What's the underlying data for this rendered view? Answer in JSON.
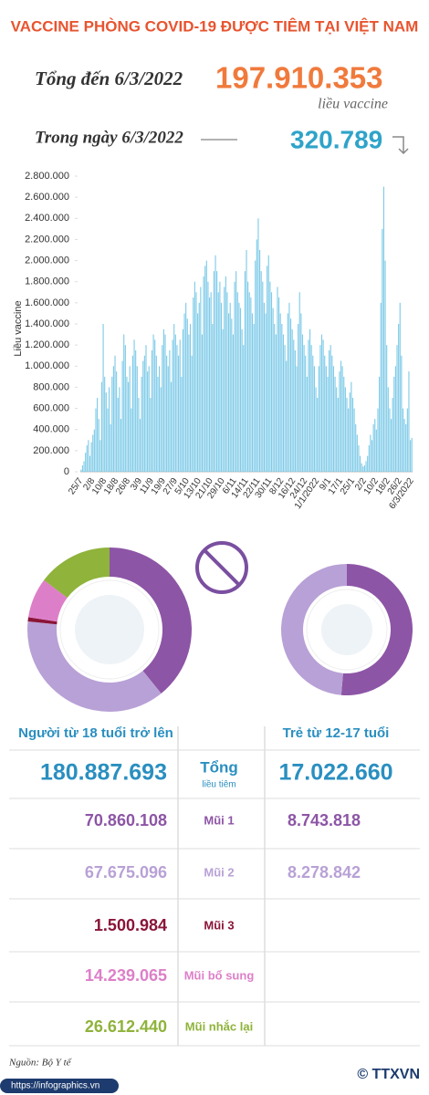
{
  "header": {
    "title": "VACCINE PHÒNG COVID-19 ĐƯỢC TIÊM TẠI VIỆT NAM",
    "total_title": "Tổng đến 6/3/2022",
    "total": "197.910.353",
    "total_unit": "liều vaccine",
    "day_title": "Trong ngày 6/3/2022",
    "day_total": "320.789"
  },
  "chart_data": [
    {
      "type": "bar",
      "y_label": "Liều vaccine",
      "color": "#7fcbe8",
      "ylim": [
        0,
        2800000
      ],
      "yticks": [
        0,
        {
          "value": 200000,
          "label": "200.000"
        },
        {
          "value": 400000,
          "label": "400.000"
        },
        {
          "value": 600000,
          "label": "600.000"
        },
        {
          "value": 800000,
          "label": "800.000"
        },
        {
          "value": 1000000,
          "label": "1.000.000"
        },
        {
          "value": 1200000,
          "label": "1.200.000"
        },
        {
          "value": 1400000,
          "label": "1.400.000"
        },
        {
          "value": 1600000,
          "label": "1.600.000"
        },
        {
          "value": 1800000,
          "label": "1.800.000"
        },
        {
          "value": 2000000,
          "label": "2.000.000"
        },
        {
          "value": 2200000,
          "label": "2.200.000"
        },
        {
          "value": 2400000,
          "label": "2.400.000"
        },
        {
          "value": 2600000,
          "label": "2.600.000"
        },
        {
          "value": 2800000,
          "label": "2.800.000"
        }
      ],
      "categories": [
        "25/7",
        null,
        null,
        null,
        null,
        null,
        null,
        null,
        "2/8",
        null,
        null,
        null,
        null,
        null,
        null,
        null,
        "10/8",
        null,
        null,
        null,
        null,
        null,
        null,
        null,
        "18/8",
        null,
        null,
        null,
        null,
        null,
        null,
        null,
        "26/8",
        null,
        null,
        null,
        null,
        null,
        null,
        null,
        "3/9",
        null,
        null,
        null,
        null,
        null,
        null,
        null,
        "11/9",
        null,
        null,
        null,
        null,
        null,
        null,
        null,
        "19/9",
        null,
        null,
        null,
        null,
        null,
        null,
        null,
        "27/9",
        null,
        null,
        null,
        null,
        null,
        null,
        null,
        "5/10",
        null,
        null,
        null,
        null,
        null,
        null,
        null,
        "13/10",
        null,
        null,
        null,
        null,
        null,
        null,
        null,
        "21/10",
        null,
        null,
        null,
        null,
        null,
        null,
        null,
        "29/10",
        null,
        null,
        null,
        null,
        null,
        null,
        null,
        "6/11",
        null,
        null,
        null,
        null,
        null,
        null,
        null,
        "14/11",
        null,
        null,
        null,
        null,
        null,
        null,
        null,
        "22/11",
        null,
        null,
        null,
        null,
        null,
        null,
        null,
        "30/11",
        null,
        null,
        null,
        null,
        null,
        null,
        null,
        "8/12",
        null,
        null,
        null,
        null,
        null,
        null,
        null,
        "16/12",
        null,
        null,
        null,
        null,
        null,
        null,
        null,
        "24/12",
        null,
        null,
        null,
        null,
        null,
        null,
        null,
        "1/1/2022",
        null,
        null,
        null,
        null,
        null,
        null,
        null,
        "9/1",
        null,
        null,
        null,
        null,
        null,
        null,
        null,
        "17/1",
        null,
        null,
        null,
        null,
        null,
        null,
        null,
        "25/1",
        null,
        null,
        null,
        null,
        null,
        null,
        null,
        "2/2",
        null,
        null,
        null,
        null,
        null,
        null,
        null,
        "10/2",
        null,
        null,
        null,
        null,
        null,
        null,
        null,
        "18/2",
        null,
        null,
        null,
        null,
        null,
        null,
        null,
        "26/2",
        null,
        null,
        null,
        null,
        null,
        null,
        null,
        "6/3/2022"
      ],
      "values": [
        20000,
        60000,
        100000,
        180000,
        250000,
        300000,
        150000,
        280000,
        350000,
        400000,
        600000,
        700000,
        500000,
        300000,
        850000,
        1400000,
        900000,
        750000,
        600000,
        800000,
        450000,
        900000,
        1000000,
        1100000,
        950000,
        700000,
        800000,
        500000,
        1050000,
        1300000,
        1200000,
        900000,
        850000,
        1000000,
        600000,
        1100000,
        1250000,
        1150000,
        1000000,
        700000,
        500000,
        900000,
        1050000,
        1100000,
        1200000,
        950000,
        1000000,
        700000,
        1150000,
        1300000,
        1250000,
        1100000,
        900000,
        1000000,
        800000,
        1200000,
        1350000,
        1300000,
        1100000,
        1000000,
        1150000,
        850000,
        1250000,
        1400000,
        1300000,
        1200000,
        1100000,
        1250000,
        900000,
        1350000,
        1500000,
        1600000,
        1450000,
        1300000,
        1400000,
        1100000,
        1650000,
        1800000,
        1700000,
        1500000,
        1600000,
        1750000,
        1300000,
        1850000,
        1950000,
        2000000,
        1800000,
        1650000,
        1700000,
        1400000,
        1900000,
        2050000,
        1900000,
        1700000,
        1800000,
        1600000,
        1350000,
        1750000,
        1850000,
        1700000,
        1500000,
        1600000,
        1450000,
        1300000,
        1800000,
        1900000,
        1700000,
        1600000,
        1550000,
        1350000,
        1200000,
        1900000,
        2100000,
        1800000,
        1700000,
        1650000,
        1500000,
        1400000,
        2000000,
        2200000,
        2400000,
        2100000,
        1900000,
        1800000,
        1600000,
        1500000,
        1950000,
        2050000,
        1800000,
        1700000,
        1550000,
        1400000,
        1300000,
        1750000,
        1650000,
        1500000,
        1400000,
        1300000,
        1200000,
        1050000,
        1500000,
        1600000,
        1450000,
        1350000,
        1250000,
        1150000,
        1000000,
        1400000,
        1700000,
        1500000,
        1300000,
        1200000,
        1100000,
        900000,
        1250000,
        1350000,
        1200000,
        1100000,
        1000000,
        800000,
        700000,
        1000000,
        1200000,
        1300000,
        1250000,
        1100000,
        1000000,
        900000,
        1150000,
        1200000,
        1100000,
        1000000,
        900000,
        800000,
        700000,
        950000,
        1050000,
        1000000,
        900000,
        800000,
        700000,
        600000,
        750000,
        850000,
        700000,
        600000,
        450000,
        350000,
        250000,
        150000,
        80000,
        50000,
        60000,
        100000,
        150000,
        250000,
        350000,
        300000,
        450000,
        500000,
        400000,
        600000,
        900000,
        1600000,
        2300000,
        2700000,
        2000000,
        1200000,
        800000,
        600000,
        500000,
        700000,
        900000,
        1000000,
        1200000,
        1400000,
        1600000,
        1100000,
        600000,
        500000,
        450000,
        600000,
        950000,
        300000,
        320789
      ]
    },
    {
      "type": "pie",
      "title": "Người từ 18 tuổi trở lên",
      "total_label": "180.887.693",
      "categories": [
        "Mũi 1",
        "Mũi 2",
        "Mũi 3",
        "Mũi bổ sung",
        "Mũi nhắc lại"
      ],
      "values": [
        70860108,
        67675096,
        1500984,
        14239065,
        26612440
      ],
      "value_labels": [
        "70.860.108",
        "67.675.096",
        "1.500.984",
        "14.239.065",
        "26.612.440"
      ],
      "colors": [
        "#8d55a6",
        "#b8a1d6",
        "#8a1538",
        "#dd7fc8",
        "#8fb33b"
      ]
    },
    {
      "type": "pie",
      "title": "Trẻ từ 12-17 tuổi",
      "total_label": "17.022.660",
      "values": [
        8743818,
        8278842
      ],
      "value_labels": [
        "8.743.818",
        "8.278.842"
      ],
      "colors": [
        "#8d55a6",
        "#b8a1d6"
      ]
    }
  ],
  "table": {
    "total_title": "Tổng",
    "total_subtitle": "liều tiêm"
  },
  "footer": {
    "source": "Nguồn: Bộ Y tế",
    "url": "https://infographics.vn",
    "brand": "© TTXVN"
  }
}
